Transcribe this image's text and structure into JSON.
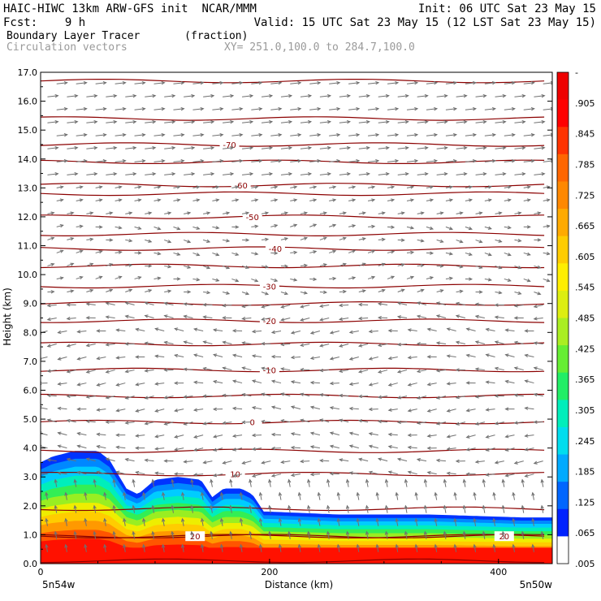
{
  "header": {
    "model": "HAIC-HIWC 13km ARW-GFS init",
    "org": "NCAR/MMM",
    "init": "Init: 06 UTC Sat 23 May 15",
    "fcst_label": "Fcst:",
    "fcst_value": "9 h",
    "valid": "Valid: 15 UTC Sat 23 May 15 (12 LST Sat 23 May 15)",
    "field": "Boundary Layer Tracer",
    "field_units": "(fraction)",
    "vectors": "Circulation vectors",
    "xy": "XY= 251.0,100.0 to 284.7,100.0"
  },
  "chart_data": {
    "type": "area",
    "ylabel": "Height (km)",
    "xlabel": "Distance (km)",
    "xlim": [
      0,
      447
    ],
    "ylim": [
      0,
      17
    ],
    "y_ticks": [
      "0.0",
      "1.0",
      "2.0",
      "3.0",
      "4.0",
      "5.0",
      "6.0",
      "7.0",
      "8.0",
      "9.0",
      "10.0",
      "11.0",
      "12.0",
      "13.0",
      "14.0",
      "15.0",
      "16.0",
      "17.0"
    ],
    "x_ticks": [
      "0",
      "200",
      "400"
    ],
    "x_end_labels": [
      "5n54w",
      "5n50w"
    ],
    "tracer_top_km": {
      "x_km": [
        0,
        10,
        30,
        50,
        60,
        75,
        85,
        100,
        120,
        140,
        150,
        160,
        175,
        185,
        195,
        200,
        260,
        300,
        340,
        380,
        420,
        447
      ],
      "height_km": [
        3.5,
        3.7,
        3.9,
        3.9,
        3.6,
        2.6,
        2.4,
        2.9,
        3.0,
        2.9,
        2.3,
        2.6,
        2.6,
        2.4,
        1.8,
        1.8,
        1.7,
        1.7,
        1.7,
        1.65,
        1.6,
        1.6
      ]
    },
    "temperature_contours": [
      {
        "label": "-70",
        "height_km": 14.5,
        "label_x_km": 165
      },
      {
        "label": "-60",
        "height_km": 13.1,
        "label_x_km": 175
      },
      {
        "label": "-50",
        "height_km": 12.0,
        "label_x_km": 185
      },
      {
        "label": "-40",
        "height_km": 10.9,
        "label_x_km": 205
      },
      {
        "label": "-30",
        "height_km": 9.6,
        "label_x_km": 200
      },
      {
        "label": "-20",
        "height_km": 8.4,
        "label_x_km": 200
      },
      {
        "label": "-10",
        "height_km": 6.7,
        "label_x_km": 200
      },
      {
        "label": "0",
        "height_km": 4.9,
        "label_x_km": 185
      },
      {
        "label": "10",
        "height_km": 3.1,
        "label_x_km": 170
      },
      {
        "label": "20",
        "height_km": 0.95,
        "label_x_km": 135
      },
      {
        "label": "20",
        "height_km": 0.95,
        "label_x_km": 405
      }
    ],
    "unlabeled_contour_heights_km": [
      16.7,
      15.4,
      13.9,
      12.8,
      11.4,
      10.3,
      9.0,
      7.6,
      5.8,
      3.9,
      1.9,
      0.1
    ],
    "colorbar": {
      "labels": [
        "-",
        ".905",
        ".845",
        ".785",
        ".725",
        ".665",
        ".605",
        ".545",
        ".485",
        ".425",
        ".365",
        ".305",
        ".245",
        ".185",
        ".125",
        ".065",
        ".005"
      ],
      "colors": [
        "#ffffff",
        "#0022ff",
        "#0066ff",
        "#00aaff",
        "#00ddee",
        "#00eebb",
        "#22ee66",
        "#66ee33",
        "#aaee22",
        "#ddee11",
        "#ffee00",
        "#ffcc00",
        "#ffaa00",
        "#ff8800",
        "#ff6600",
        "#ff3300",
        "#ff0000",
        "#ee0000"
      ]
    },
    "contour_color": "#8b0000",
    "vector_color": "#707070"
  }
}
